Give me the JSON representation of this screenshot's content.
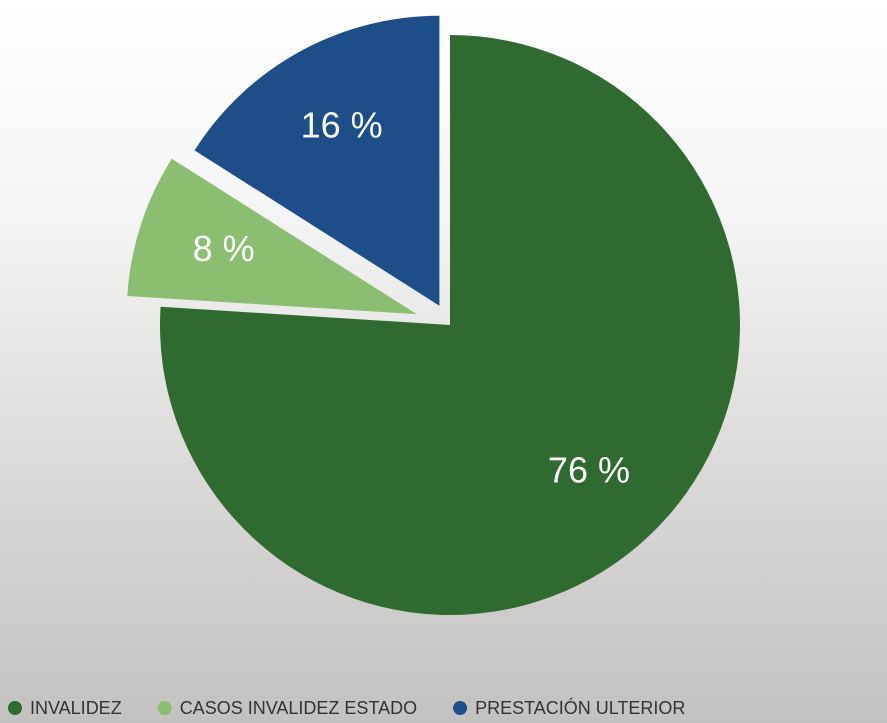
{
  "chart_data": {
    "type": "pie",
    "categories": [
      "INVALIDEZ",
      "CASOS INVALIDEZ ESTADO",
      "PRESTACIÓN ULTERIOR"
    ],
    "values": [
      76,
      8,
      16
    ],
    "value_labels": [
      "76 %",
      "8 %",
      "16 %"
    ],
    "colors": [
      "#2f6a30",
      "#8cbe72",
      "#1e4e88"
    ]
  }
}
